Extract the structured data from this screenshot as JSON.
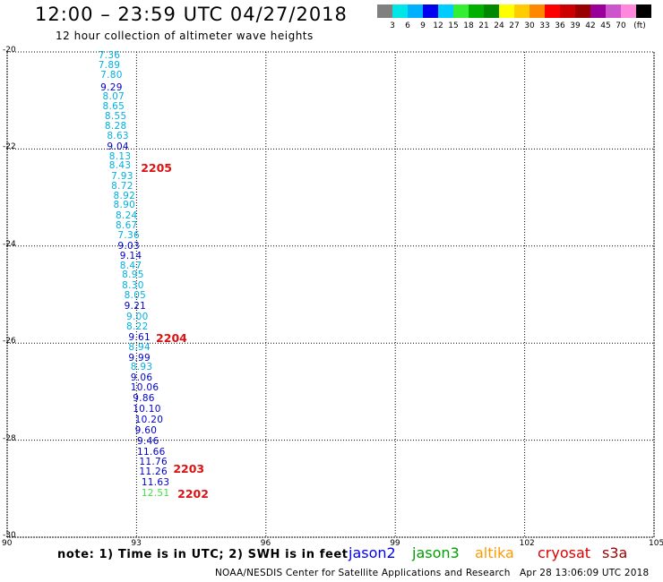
{
  "header": {
    "title": "12:00 – 23:59 UTC 04/27/2018",
    "subtitle": "12 hour collection of altimeter wave heights"
  },
  "legend": {
    "colors": [
      "#808080",
      "#00e5e5",
      "#00b0ff",
      "#0000ee",
      "#00ccff",
      "#33ee33",
      "#00b000",
      "#008800",
      "#ffff00",
      "#ffcc00",
      "#ff8800",
      "#ff0000",
      "#cc0000",
      "#990000",
      "#990099",
      "#cc55cc",
      "#ff88dd",
      "#000000"
    ],
    "labels": [
      "3",
      "6",
      "9",
      "12",
      "15",
      "18",
      "21",
      "24",
      "27",
      "30",
      "33",
      "36",
      "39",
      "42",
      "45",
      "70",
      "(ft)"
    ]
  },
  "axes": {
    "y_labels": [
      "-20",
      "-22",
      "-24",
      "-26",
      "-28",
      "-30"
    ],
    "x_labels": [
      "90",
      "93",
      "96",
      "99",
      "102",
      "105"
    ]
  },
  "chart_data": {
    "type": "scatter",
    "xlim": [
      90,
      105
    ],
    "ylim": [
      -30,
      -20
    ],
    "grid": true,
    "points": [
      {
        "lon": 92.3,
        "lat": -20.1,
        "v": "7.36",
        "c": "#00b0e0"
      },
      {
        "lon": 92.3,
        "lat": -20.3,
        "v": "7.89",
        "c": "#00b0e0"
      },
      {
        "lon": 92.35,
        "lat": -20.5,
        "v": "7.80",
        "c": "#00b0e0"
      },
      {
        "lon": 92.35,
        "lat": -20.75,
        "v": "9.29",
        "c": "#0000cc"
      },
      {
        "lon": 92.4,
        "lat": -20.95,
        "v": "8.07",
        "c": "#00b0e0"
      },
      {
        "lon": 92.4,
        "lat": -21.15,
        "v": "8.65",
        "c": "#00b0e0"
      },
      {
        "lon": 92.45,
        "lat": -21.35,
        "v": "8.55",
        "c": "#00b0e0"
      },
      {
        "lon": 92.45,
        "lat": -21.55,
        "v": "8.28",
        "c": "#00b0e0"
      },
      {
        "lon": 92.5,
        "lat": -21.75,
        "v": "8.63",
        "c": "#00b0e0"
      },
      {
        "lon": 92.5,
        "lat": -21.97,
        "v": "9.04",
        "c": "#0000cc"
      },
      {
        "lon": 92.55,
        "lat": -22.17,
        "v": "8.13",
        "c": "#00b0e0"
      },
      {
        "lon": 92.55,
        "lat": -22.37,
        "v": "8.43",
        "c": "#00b0e0"
      },
      {
        "lon": 92.6,
        "lat": -22.58,
        "v": "7.93",
        "c": "#00b0e0"
      },
      {
        "lon": 92.6,
        "lat": -22.78,
        "v": "8.72",
        "c": "#00b0e0"
      },
      {
        "lon": 92.65,
        "lat": -22.98,
        "v": "8.92",
        "c": "#00b0e0"
      },
      {
        "lon": 92.65,
        "lat": -23.18,
        "v": "8.90",
        "c": "#00b0e0"
      },
      {
        "lon": 92.7,
        "lat": -23.4,
        "v": "8.24",
        "c": "#00b0e0"
      },
      {
        "lon": 92.7,
        "lat": -23.6,
        "v": "8.67",
        "c": "#00b0e0"
      },
      {
        "lon": 92.75,
        "lat": -23.8,
        "v": "7.36",
        "c": "#00b0e0"
      },
      {
        "lon": 92.75,
        "lat": -24.02,
        "v": "9.03",
        "c": "#0000cc"
      },
      {
        "lon": 92.8,
        "lat": -24.22,
        "v": "9.14",
        "c": "#0000cc"
      },
      {
        "lon": 92.8,
        "lat": -24.42,
        "v": "8.47",
        "c": "#00b0e0"
      },
      {
        "lon": 92.85,
        "lat": -24.62,
        "v": "8.95",
        "c": "#00b0e0"
      },
      {
        "lon": 92.85,
        "lat": -24.84,
        "v": "8.30",
        "c": "#00b0e0"
      },
      {
        "lon": 92.9,
        "lat": -25.04,
        "v": "8.05",
        "c": "#00b0e0"
      },
      {
        "lon": 92.9,
        "lat": -25.26,
        "v": "9.21",
        "c": "#0000cc"
      },
      {
        "lon": 92.95,
        "lat": -25.48,
        "v": "9.00",
        "c": "#00b0e0"
      },
      {
        "lon": 92.95,
        "lat": -25.68,
        "v": "8.22",
        "c": "#00b0e0"
      },
      {
        "lon": 93.0,
        "lat": -25.9,
        "v": "9.61",
        "c": "#0000cc"
      },
      {
        "lon": 93.0,
        "lat": -26.1,
        "v": "8.94",
        "c": "#00b0e0"
      },
      {
        "lon": 93.0,
        "lat": -26.32,
        "v": "9.99",
        "c": "#0000cc"
      },
      {
        "lon": 93.05,
        "lat": -26.52,
        "v": "8.93",
        "c": "#00b0e0"
      },
      {
        "lon": 93.05,
        "lat": -26.74,
        "v": "9.06",
        "c": "#0000cc"
      },
      {
        "lon": 93.05,
        "lat": -26.94,
        "v": "10.06",
        "c": "#0000cc"
      },
      {
        "lon": 93.1,
        "lat": -27.16,
        "v": "9.86",
        "c": "#0000cc"
      },
      {
        "lon": 93.1,
        "lat": -27.38,
        "v": "10.10",
        "c": "#0000cc"
      },
      {
        "lon": 93.15,
        "lat": -27.6,
        "v": "10.20",
        "c": "#0000cc"
      },
      {
        "lon": 93.15,
        "lat": -27.82,
        "v": "9.60",
        "c": "#0000cc"
      },
      {
        "lon": 93.2,
        "lat": -28.04,
        "v": "9.46",
        "c": "#0000cc"
      },
      {
        "lon": 93.2,
        "lat": -28.26,
        "v": "11.66",
        "c": "#0000cc"
      },
      {
        "lon": 93.25,
        "lat": -28.46,
        "v": "11.76",
        "c": "#0000cc"
      },
      {
        "lon": 93.25,
        "lat": -28.68,
        "v": "11.26",
        "c": "#0000cc"
      },
      {
        "lon": 93.3,
        "lat": -28.9,
        "v": "11.63",
        "c": "#0000cc"
      },
      {
        "lon": 93.3,
        "lat": -29.12,
        "v": "12.51",
        "c": "#44dd44"
      }
    ],
    "pass_labels": [
      {
        "lon": 93.1,
        "lat": -22.4,
        "v": "2205"
      },
      {
        "lon": 93.45,
        "lat": -25.9,
        "v": "2204"
      },
      {
        "lon": 93.85,
        "lat": -28.6,
        "v": "2203"
      },
      {
        "lon": 93.95,
        "lat": -29.12,
        "v": "2202"
      }
    ]
  },
  "footer": {
    "note": "note: 1) Time is in UTC; 2) SWH is in feet",
    "satellites": [
      {
        "name": "jason2",
        "color": "#0000ee"
      },
      {
        "name": "jason3",
        "color": "#00a000"
      },
      {
        "name": "altika",
        "color": "#ff9900"
      },
      {
        "name": "cryosat",
        "color": "#dd0000"
      },
      {
        "name": "s3a",
        "color": "#990000"
      }
    ],
    "credit": "NOAA/NESDIS Center for Satellite Applications and Research",
    "timestamp": "Apr 28 13:06:09 UTC 2018"
  }
}
